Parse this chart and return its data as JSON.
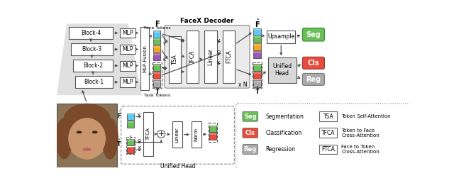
{
  "colors": {
    "blue": "#5BC8F5",
    "green": "#6BBF59",
    "orange": "#F5A623",
    "purple": "#9B59B6",
    "red": "#E74C3C",
    "gray": "#AAAAAA",
    "seg_green": "#6BBF59",
    "cls_red": "#E74C3C",
    "reg_gray": "#AAAAAA",
    "enc_bg": "#DEDEDE",
    "decoder_bg": "#E8E8E8",
    "box_edge": "#555555"
  },
  "legend": {
    "seg_label": "Segmentation",
    "cls_label": "Classification",
    "reg_label": "Regression",
    "tsa_label": "Token Self-Attention",
    "tfca_label": "Token to Face\nCross-Attention",
    "ftca_label": "Face to Token\nCross-Attention"
  }
}
